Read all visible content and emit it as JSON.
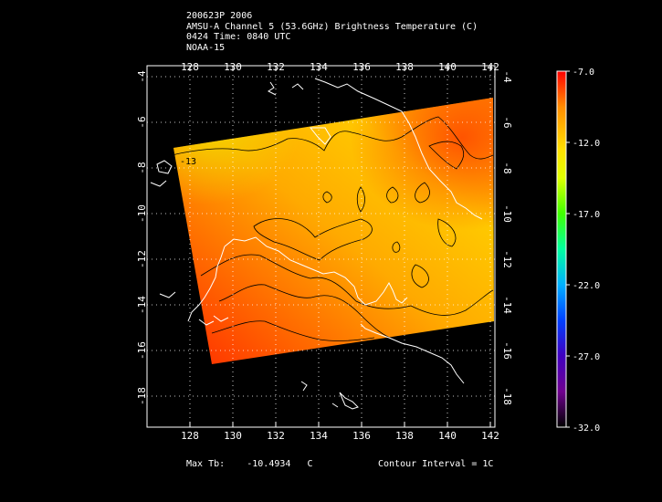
{
  "header": {
    "line1": "200623P 2006",
    "line2": "AMSU-A Channel 5 (53.6GHz) Brightness Temperature (C)",
    "line3": "0424 Time: 0840 UTC",
    "line4": "NOAA-15"
  },
  "map": {
    "lon_ticks": [
      "128",
      "130",
      "132",
      "134",
      "136",
      "138",
      "140",
      "142"
    ],
    "lat_ticks": [
      "-4",
      "-6",
      "-8",
      "-10",
      "-12",
      "-14",
      "-16",
      "-18"
    ],
    "contour_label": "-13",
    "lon_range": [
      126.5,
      142
    ],
    "lat_range": [
      -3.5,
      -20.3
    ]
  },
  "colorbar": {
    "labels": [
      "-7.0",
      "-12.0",
      "-17.0",
      "-22.0",
      "-27.0",
      "-32.0"
    ],
    "range": [
      -32.0,
      -7.0
    ],
    "colors": [
      "#ff0000",
      "#ff8c00",
      "#ffd000",
      "#ffff00",
      "#a0ff00",
      "#00ff00",
      "#00ffcc",
      "#00a0ff",
      "#0000ff",
      "#6000c0",
      "#8000a0",
      "#000000"
    ]
  },
  "footer": {
    "max_label": "Max Tb:",
    "max_value": "-10.4934",
    "max_unit": "C",
    "contour_text": "Contour Interval = 1C"
  }
}
